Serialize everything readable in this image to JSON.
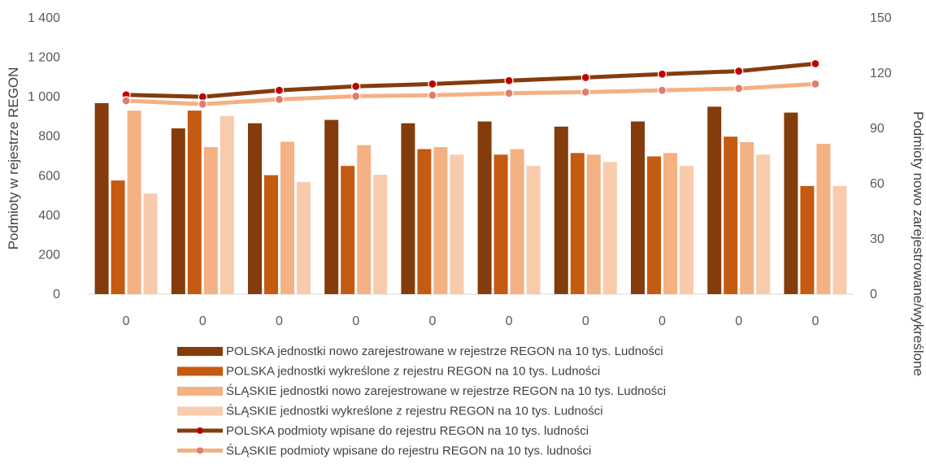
{
  "chart_data": {
    "type": "bar",
    "categories": [
      "0",
      "0",
      "0",
      "0",
      "0",
      "0",
      "0",
      "0",
      "0",
      "0"
    ],
    "ylabel": "Podmioty w rejestrze REGON",
    "y2label": "Podmioty nowo zarejestrowane/wykreślone",
    "ylim": [
      0,
      1400
    ],
    "y2lim": [
      0,
      150
    ],
    "yticks": [
      "0",
      "200",
      "400",
      "600",
      "800",
      "1 000",
      "1 200",
      "1 400"
    ],
    "y2ticks": [
      "0",
      "30",
      "60",
      "90",
      "120",
      "150"
    ],
    "legend_position": "bottom",
    "bar_series": [
      {
        "name": "POLSKA jednostki nowo zarejestrowane w rejestrze REGON na 10 tys. Ludności",
        "color": "#843c0c",
        "values": [
          968,
          840,
          866,
          883,
          866,
          875,
          849,
          875,
          950,
          920
        ]
      },
      {
        "name": "POLSKA jednostki wykreślone z rejestru REGON na 10 tys. Ludności",
        "color": "#c55a11",
        "values": [
          576,
          930,
          603,
          650,
          735,
          707,
          715,
          698,
          798,
          548
        ]
      },
      {
        "name": "ŚLĄSKIE jednostki nowo zarejestrowane w rejestrze REGON na 10 tys. Ludności",
        "color": "#f4b183",
        "values": [
          930,
          745,
          772,
          755,
          745,
          735,
          707,
          715,
          770,
          762
        ]
      },
      {
        "name": "ŚLĄSKIE jednostki wykreślone z rejestru REGON na 10 tys. Ludności",
        "color": "#f8cbad",
        "values": [
          510,
          903,
          568,
          605,
          707,
          650,
          670,
          650,
          707,
          548
        ]
      }
    ],
    "line_series": [
      {
        "name": "POLSKA podmioty wpisane do rejestru REGON na 10 tys. ludności",
        "color": "#843c0c",
        "marker_color": "#c00000",
        "values": [
          1010,
          1000,
          1033,
          1053,
          1065,
          1082,
          1098,
          1115,
          1130,
          1168
        ]
      },
      {
        "name": "ŚLĄSKIE podmioty wpisane do rejestru REGON na 10 tys. ludności",
        "color": "#f4b183",
        "marker_color": "#e07b70",
        "values": [
          980,
          963,
          987,
          1003,
          1008,
          1018,
          1024,
          1033,
          1042,
          1065
        ]
      }
    ]
  }
}
